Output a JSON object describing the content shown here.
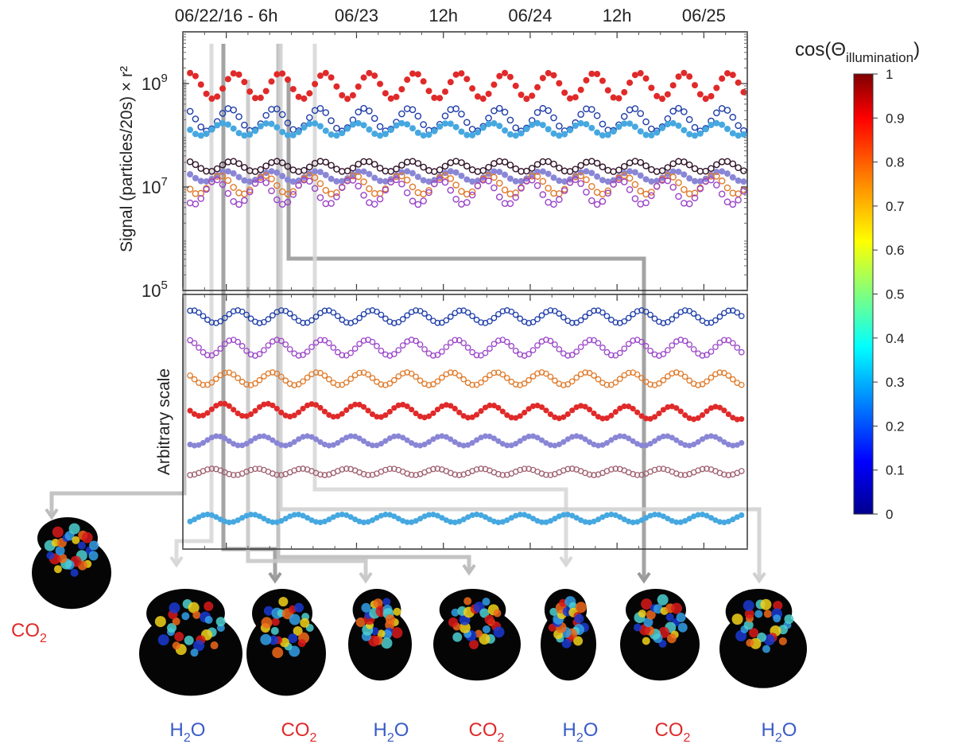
{
  "chart_data": [
    {
      "type": "scatter",
      "panel": "top",
      "ylabel": "Signal (particles/20s) × r²",
      "yscale": "log",
      "ylim": [
        100000,
        10000000000
      ],
      "yticks": [
        {
          "label": "10",
          "exp": "5",
          "value": 100000
        },
        {
          "label": "10",
          "exp": "7",
          "value": 10000000
        },
        {
          "label": "10",
          "exp": "9",
          "value": 1000000000
        }
      ],
      "xlim_hours": [
        -6,
        72
      ],
      "x_ticks": [
        {
          "label": "06/22/16 - 6h",
          "hour": 0
        },
        {
          "label": "06/23",
          "hour": 18
        },
        {
          "label": "12h",
          "hour": 30
        },
        {
          "label": "06/24",
          "hour": 42
        },
        {
          "label": "12h",
          "hour": 54
        },
        {
          "label": "06/25",
          "hour": 66
        }
      ],
      "series": [
        {
          "color": "#e02a2a",
          "marker": "filled",
          "level": 900000000,
          "amp": 0.25,
          "period": 6.2,
          "phase": 0.3
        },
        {
          "color": "#1f3ea8",
          "marker": "open",
          "level": 200000000,
          "amp": 0.22,
          "period": 6.2,
          "phase": 1.1
        },
        {
          "color": "#46a8e0",
          "marker": "filled",
          "level": 130000000,
          "amp": 0.12,
          "period": 6.2,
          "phase": 2.0
        },
        {
          "color": "#301428",
          "marker": "open",
          "level": 25000000,
          "amp": 0.1,
          "period": 6.2,
          "phase": 0.8
        },
        {
          "color": "#8a86d6",
          "marker": "filled",
          "level": 16000000,
          "amp": 0.1,
          "period": 6.2,
          "phase": 1.5
        },
        {
          "color": "#e07a2a",
          "marker": "open",
          "level": 11000000,
          "amp": 0.18,
          "period": 6.2,
          "phase": 2.4
        },
        {
          "color": "#9a45c8",
          "marker": "open",
          "level": 8000000,
          "amp": 0.24,
          "period": 6.2,
          "phase": 3.0
        }
      ]
    },
    {
      "type": "scatter",
      "panel": "bottom",
      "ylabel": "Arbitrary scale",
      "series": [
        {
          "color": "#1f3ea8",
          "marker": "open",
          "offset": 0.0,
          "amp": 8
        },
        {
          "color": "#9a45c8",
          "marker": "open",
          "offset": 1.0,
          "amp": 10
        },
        {
          "color": "#e07a2a",
          "marker": "open",
          "offset": 2.0,
          "amp": 8
        },
        {
          "color": "#e02a2a",
          "marker": "filled",
          "offset": 3.0,
          "amp": 8
        },
        {
          "color": "#8a86d6",
          "marker": "filled",
          "offset": 4.0,
          "amp": 6
        },
        {
          "color": "#a06070",
          "marker": "open",
          "offset": 5.0,
          "amp": 4
        },
        {
          "color": "#46a8e0",
          "marker": "filled",
          "offset": 6.5,
          "amp": 5
        }
      ]
    }
  ],
  "colorbar": {
    "title_base": "cos(Θ",
    "title_sub": "illumination",
    "title_end": ")",
    "ticks": [
      "1",
      "0.9",
      "0.8",
      "0.7",
      "0.6",
      "0.5",
      "0.4",
      "0.3",
      "0.2",
      "0.1",
      "0"
    ],
    "colors": [
      "#7f0000",
      "#ff0000",
      "#ff8c00",
      "#ffff00",
      "#7fff7f",
      "#00ffff",
      "#0080ff",
      "#0000ff",
      "#00008f"
    ]
  },
  "nucleus_views": [
    {
      "main": "CO",
      "sub": "2",
      "color": "#e02a2a"
    },
    {
      "main": "H",
      "sub": "2",
      "tail": "O",
      "color": "#3a5bc8"
    },
    {
      "main": "CO",
      "sub": "2",
      "color": "#e02a2a"
    },
    {
      "main": "H",
      "sub": "2",
      "tail": "O",
      "color": "#3a5bc8"
    },
    {
      "main": "CO",
      "sub": "2",
      "color": "#e02a2a"
    },
    {
      "main": "H",
      "sub": "2",
      "tail": "O",
      "color": "#3a5bc8"
    },
    {
      "main": "CO",
      "sub": "2",
      "color": "#e02a2a"
    },
    {
      "main": "H",
      "sub": "2",
      "tail": "O",
      "color": "#3a5bc8"
    }
  ]
}
